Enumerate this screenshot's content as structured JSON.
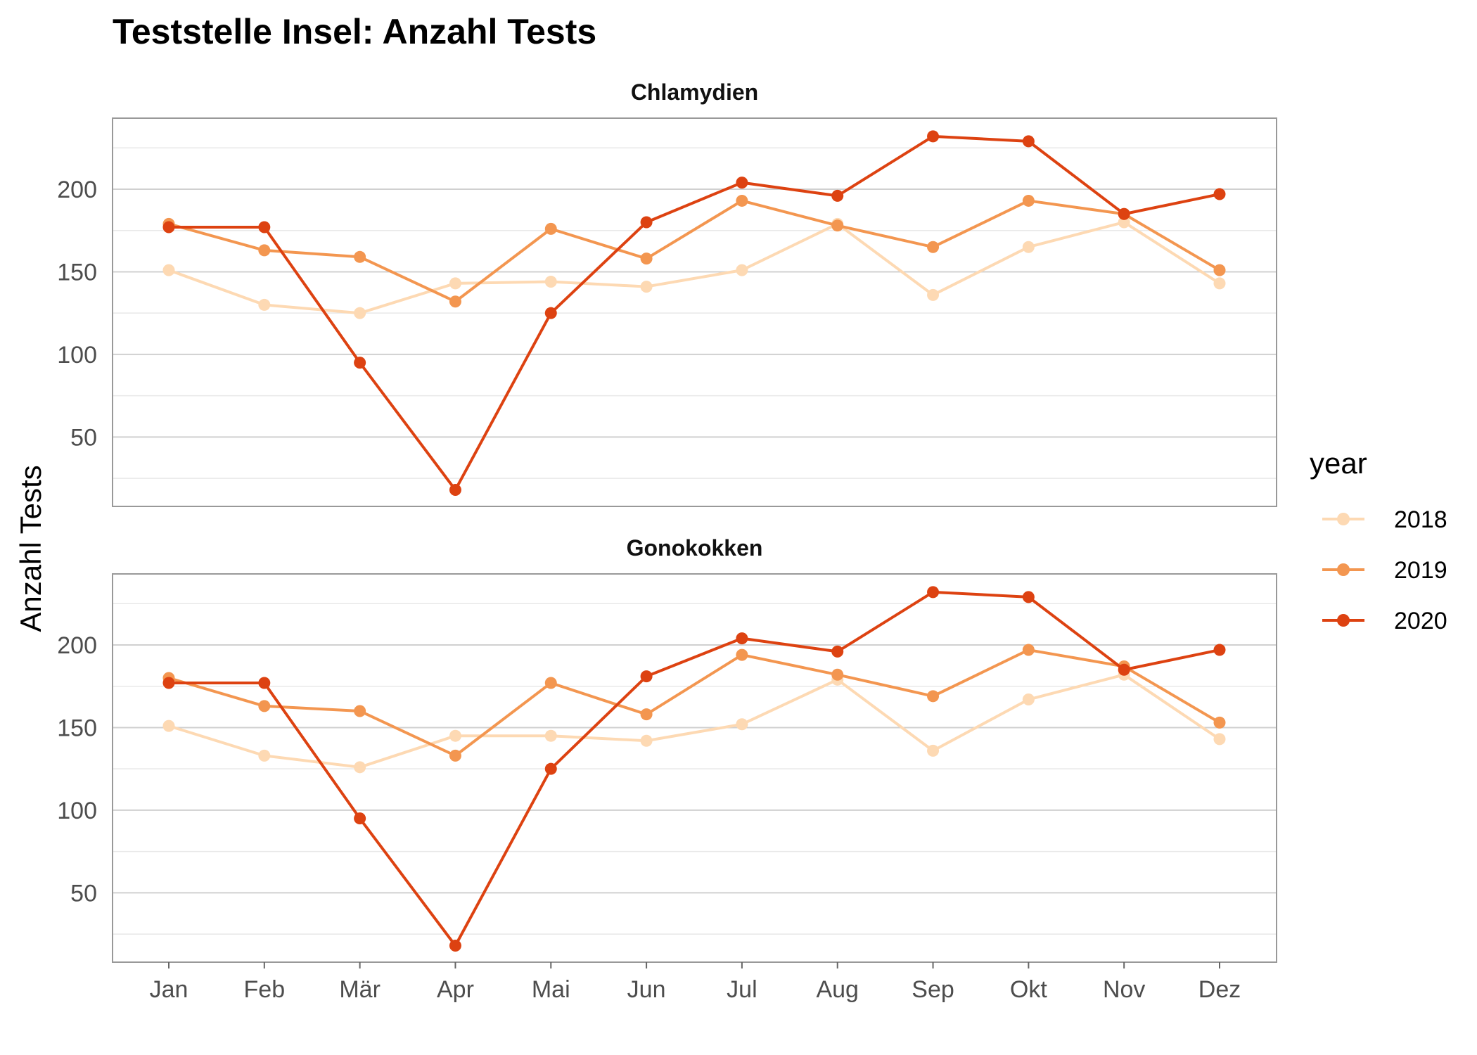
{
  "colors": {
    "2018": "#fdd9b3",
    "2019": "#f39650",
    "2020": "#dd4211"
  },
  "chart_data": {
    "type": "line",
    "title": "Teststelle Insel: Anzahl Tests",
    "ylabel": "Anzahl Tests",
    "xlabel": "",
    "categories": [
      "Jan",
      "Feb",
      "Mär",
      "Apr",
      "Mai",
      "Jun",
      "Jul",
      "Aug",
      "Sep",
      "Okt",
      "Nov",
      "Dez"
    ],
    "ylim": [
      8,
      243
    ],
    "yticks": [
      50,
      100,
      150,
      200
    ],
    "grid": true,
    "legend": {
      "title": "year",
      "position": "right",
      "entries": [
        "2018",
        "2019",
        "2020"
      ]
    },
    "facets": [
      {
        "label": "Chlamydien",
        "series": [
          {
            "name": "2018",
            "values": [
              151,
              130,
              125,
              143,
              144,
              141,
              151,
              179,
              136,
              165,
              180,
              143
            ]
          },
          {
            "name": "2019",
            "values": [
              179,
              163,
              159,
              132,
              176,
              158,
              193,
              178,
              165,
              193,
              185,
              151
            ]
          },
          {
            "name": "2020",
            "values": [
              177,
              177,
              95,
              18,
              125,
              180,
              204,
              196,
              232,
              229,
              185,
              197
            ]
          }
        ]
      },
      {
        "label": "Gonokokken",
        "series": [
          {
            "name": "2018",
            "values": [
              151,
              133,
              126,
              145,
              145,
              142,
              152,
              179,
              136,
              167,
              182,
              143
            ]
          },
          {
            "name": "2019",
            "values": [
              180,
              163,
              160,
              133,
              177,
              158,
              194,
              182,
              169,
              197,
              187,
              153
            ]
          },
          {
            "name": "2020",
            "values": [
              177,
              177,
              95,
              18,
              125,
              181,
              204,
              196,
              232,
              229,
              185,
              197
            ]
          }
        ]
      }
    ]
  }
}
